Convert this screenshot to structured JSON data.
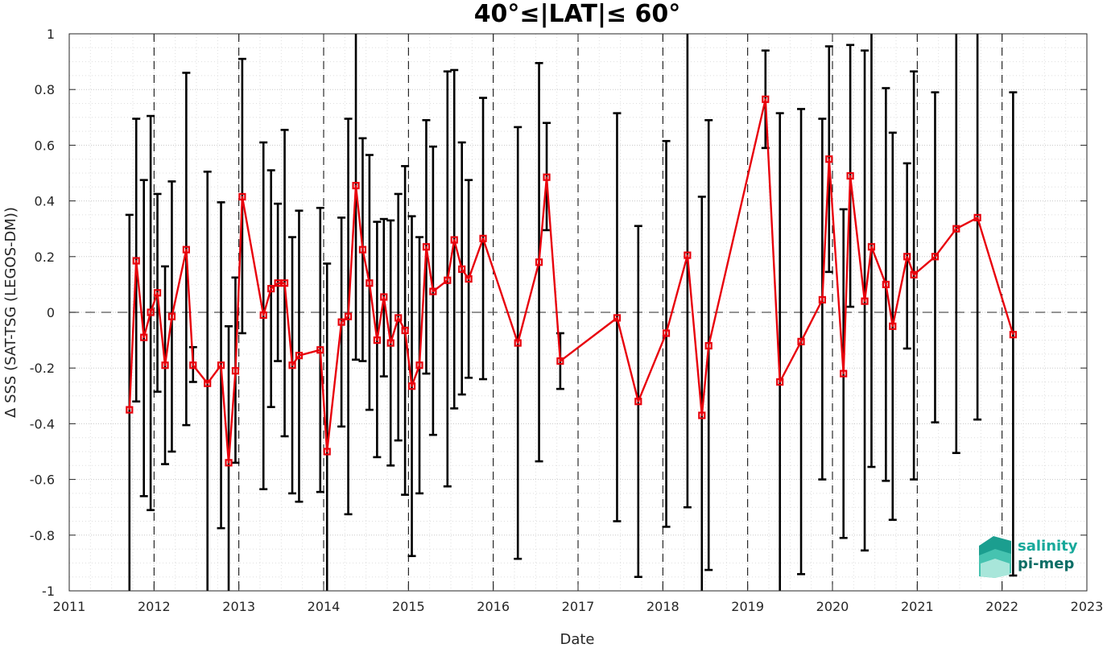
{
  "chart_data": {
    "type": "line",
    "title": "40°≤|LAT|≤ 60°",
    "xlabel": "Date",
    "ylabel": "Δ SSS (SAT-TSG (LEGOS-DM))",
    "xlim": [
      2011,
      2023
    ],
    "ylim": [
      -1,
      1
    ],
    "x_ticks": [
      "2011",
      "2012",
      "2013",
      "2014",
      "2015",
      "2016",
      "2017",
      "2018",
      "2019",
      "2020",
      "2021",
      "2022",
      "2023"
    ],
    "y_ticks": [
      "-1",
      "-0.8",
      "-0.6",
      "-0.4",
      "-0.2",
      "0",
      "0.2",
      "0.4",
      "0.6",
      "0.8",
      "1"
    ],
    "grid": true,
    "zero_line": true,
    "year_boundaries": [
      2012,
      2013,
      2014,
      2015,
      2016,
      2017,
      2018,
      2019,
      2020,
      2021,
      2022
    ],
    "series": [
      {
        "color": "#e8000b",
        "marker": "square",
        "x": [
          2011.71,
          2011.79,
          2011.88,
          2011.96,
          2012.04,
          2012.13,
          2012.21,
          2012.38,
          2012.46,
          2012.63,
          2012.79,
          2012.88,
          2012.96,
          2013.04,
          2013.29,
          2013.38,
          2013.46,
          2013.54,
          2013.63,
          2013.71,
          2013.96,
          2014.04,
          2014.21,
          2014.29,
          2014.38,
          2014.46,
          2014.54,
          2014.63,
          2014.71,
          2014.79,
          2014.88,
          2014.96,
          2015.04,
          2015.13,
          2015.21,
          2015.29,
          2015.46,
          2015.54,
          2015.63,
          2015.71,
          2015.88,
          2016.29,
          2016.54,
          2016.63,
          2016.79,
          2017.46,
          2017.71,
          2018.04,
          2018.29,
          2018.46,
          2018.54,
          2019.21,
          2019.38,
          2019.63,
          2019.88,
          2019.96,
          2020.13,
          2020.21,
          2020.38,
          2020.46,
          2020.63,
          2020.71,
          2020.88,
          2020.96,
          2021.21,
          2021.46,
          2021.71,
          2022.13
        ],
        "y": [
          -0.35,
          0.185,
          -0.09,
          0.0,
          0.07,
          -0.19,
          -0.015,
          0.225,
          -0.19,
          -0.255,
          -0.19,
          -0.54,
          -0.21,
          0.415,
          -0.01,
          0.085,
          0.105,
          0.105,
          -0.19,
          -0.155,
          -0.135,
          -0.5,
          -0.035,
          -0.015,
          0.455,
          0.225,
          0.105,
          -0.1,
          0.055,
          -0.11,
          -0.02,
          -0.065,
          -0.265,
          -0.19,
          0.235,
          0.075,
          0.115,
          0.26,
          0.155,
          0.12,
          0.265,
          -0.11,
          0.18,
          0.485,
          -0.175,
          -0.02,
          -0.32,
          -0.075,
          0.205,
          -0.37,
          -0.12,
          0.765,
          -0.25,
          -0.105,
          0.045,
          0.55,
          -0.22,
          0.49,
          0.04,
          0.235,
          0.1,
          -0.05,
          0.2,
          0.135,
          0.2,
          0.3,
          0.34,
          -0.08
        ],
        "err_low": [
          -1.0,
          -0.32,
          -0.66,
          -0.71,
          -0.285,
          -0.545,
          -0.5,
          -0.405,
          -0.25,
          -1.0,
          -0.775,
          -1.0,
          -0.54,
          -0.075,
          -0.635,
          -0.34,
          -0.175,
          -0.445,
          -0.65,
          -0.68,
          -0.645,
          -1.0,
          -0.41,
          -0.725,
          -0.17,
          -0.175,
          -0.35,
          -0.52,
          -0.23,
          -0.55,
          -0.46,
          -0.655,
          -0.875,
          -0.65,
          -0.22,
          -0.44,
          -0.625,
          -0.345,
          -0.295,
          -0.235,
          -0.24,
          -0.885,
          -0.535,
          0.295,
          -0.275,
          -0.75,
          -0.95,
          -0.77,
          -0.7,
          -1.0,
          -0.925,
          0.59,
          -1.0,
          -0.94,
          -0.6,
          0.145,
          -0.81,
          0.02,
          -0.855,
          -0.555,
          -0.605,
          -0.745,
          -0.13,
          -0.6,
          -0.395,
          -0.505,
          -0.385,
          -0.945
        ],
        "err_high": [
          0.35,
          0.695,
          0.475,
          0.705,
          0.425,
          0.165,
          0.47,
          0.86,
          -0.125,
          0.505,
          0.395,
          -0.05,
          0.125,
          0.91,
          0.61,
          0.51,
          0.39,
          0.655,
          0.27,
          0.365,
          0.375,
          0.175,
          0.34,
          0.695,
          1.0,
          0.625,
          0.565,
          0.325,
          0.335,
          0.33,
          0.425,
          0.525,
          0.345,
          0.27,
          0.69,
          0.595,
          0.865,
          0.87,
          0.61,
          0.475,
          0.77,
          0.665,
          0.895,
          0.68,
          -0.075,
          0.715,
          0.31,
          0.615,
          1.0,
          0.415,
          0.69,
          0.94,
          0.715,
          0.73,
          0.695,
          0.955,
          0.37,
          0.96,
          0.94,
          1.0,
          0.805,
          0.645,
          0.535,
          0.865,
          0.79,
          1.0,
          1.0,
          0.79
        ]
      }
    ]
  },
  "logo": {
    "line1": "salinity",
    "line2": "pi-mep",
    "color1": "#18a99b",
    "color2": "#0d6e66"
  }
}
